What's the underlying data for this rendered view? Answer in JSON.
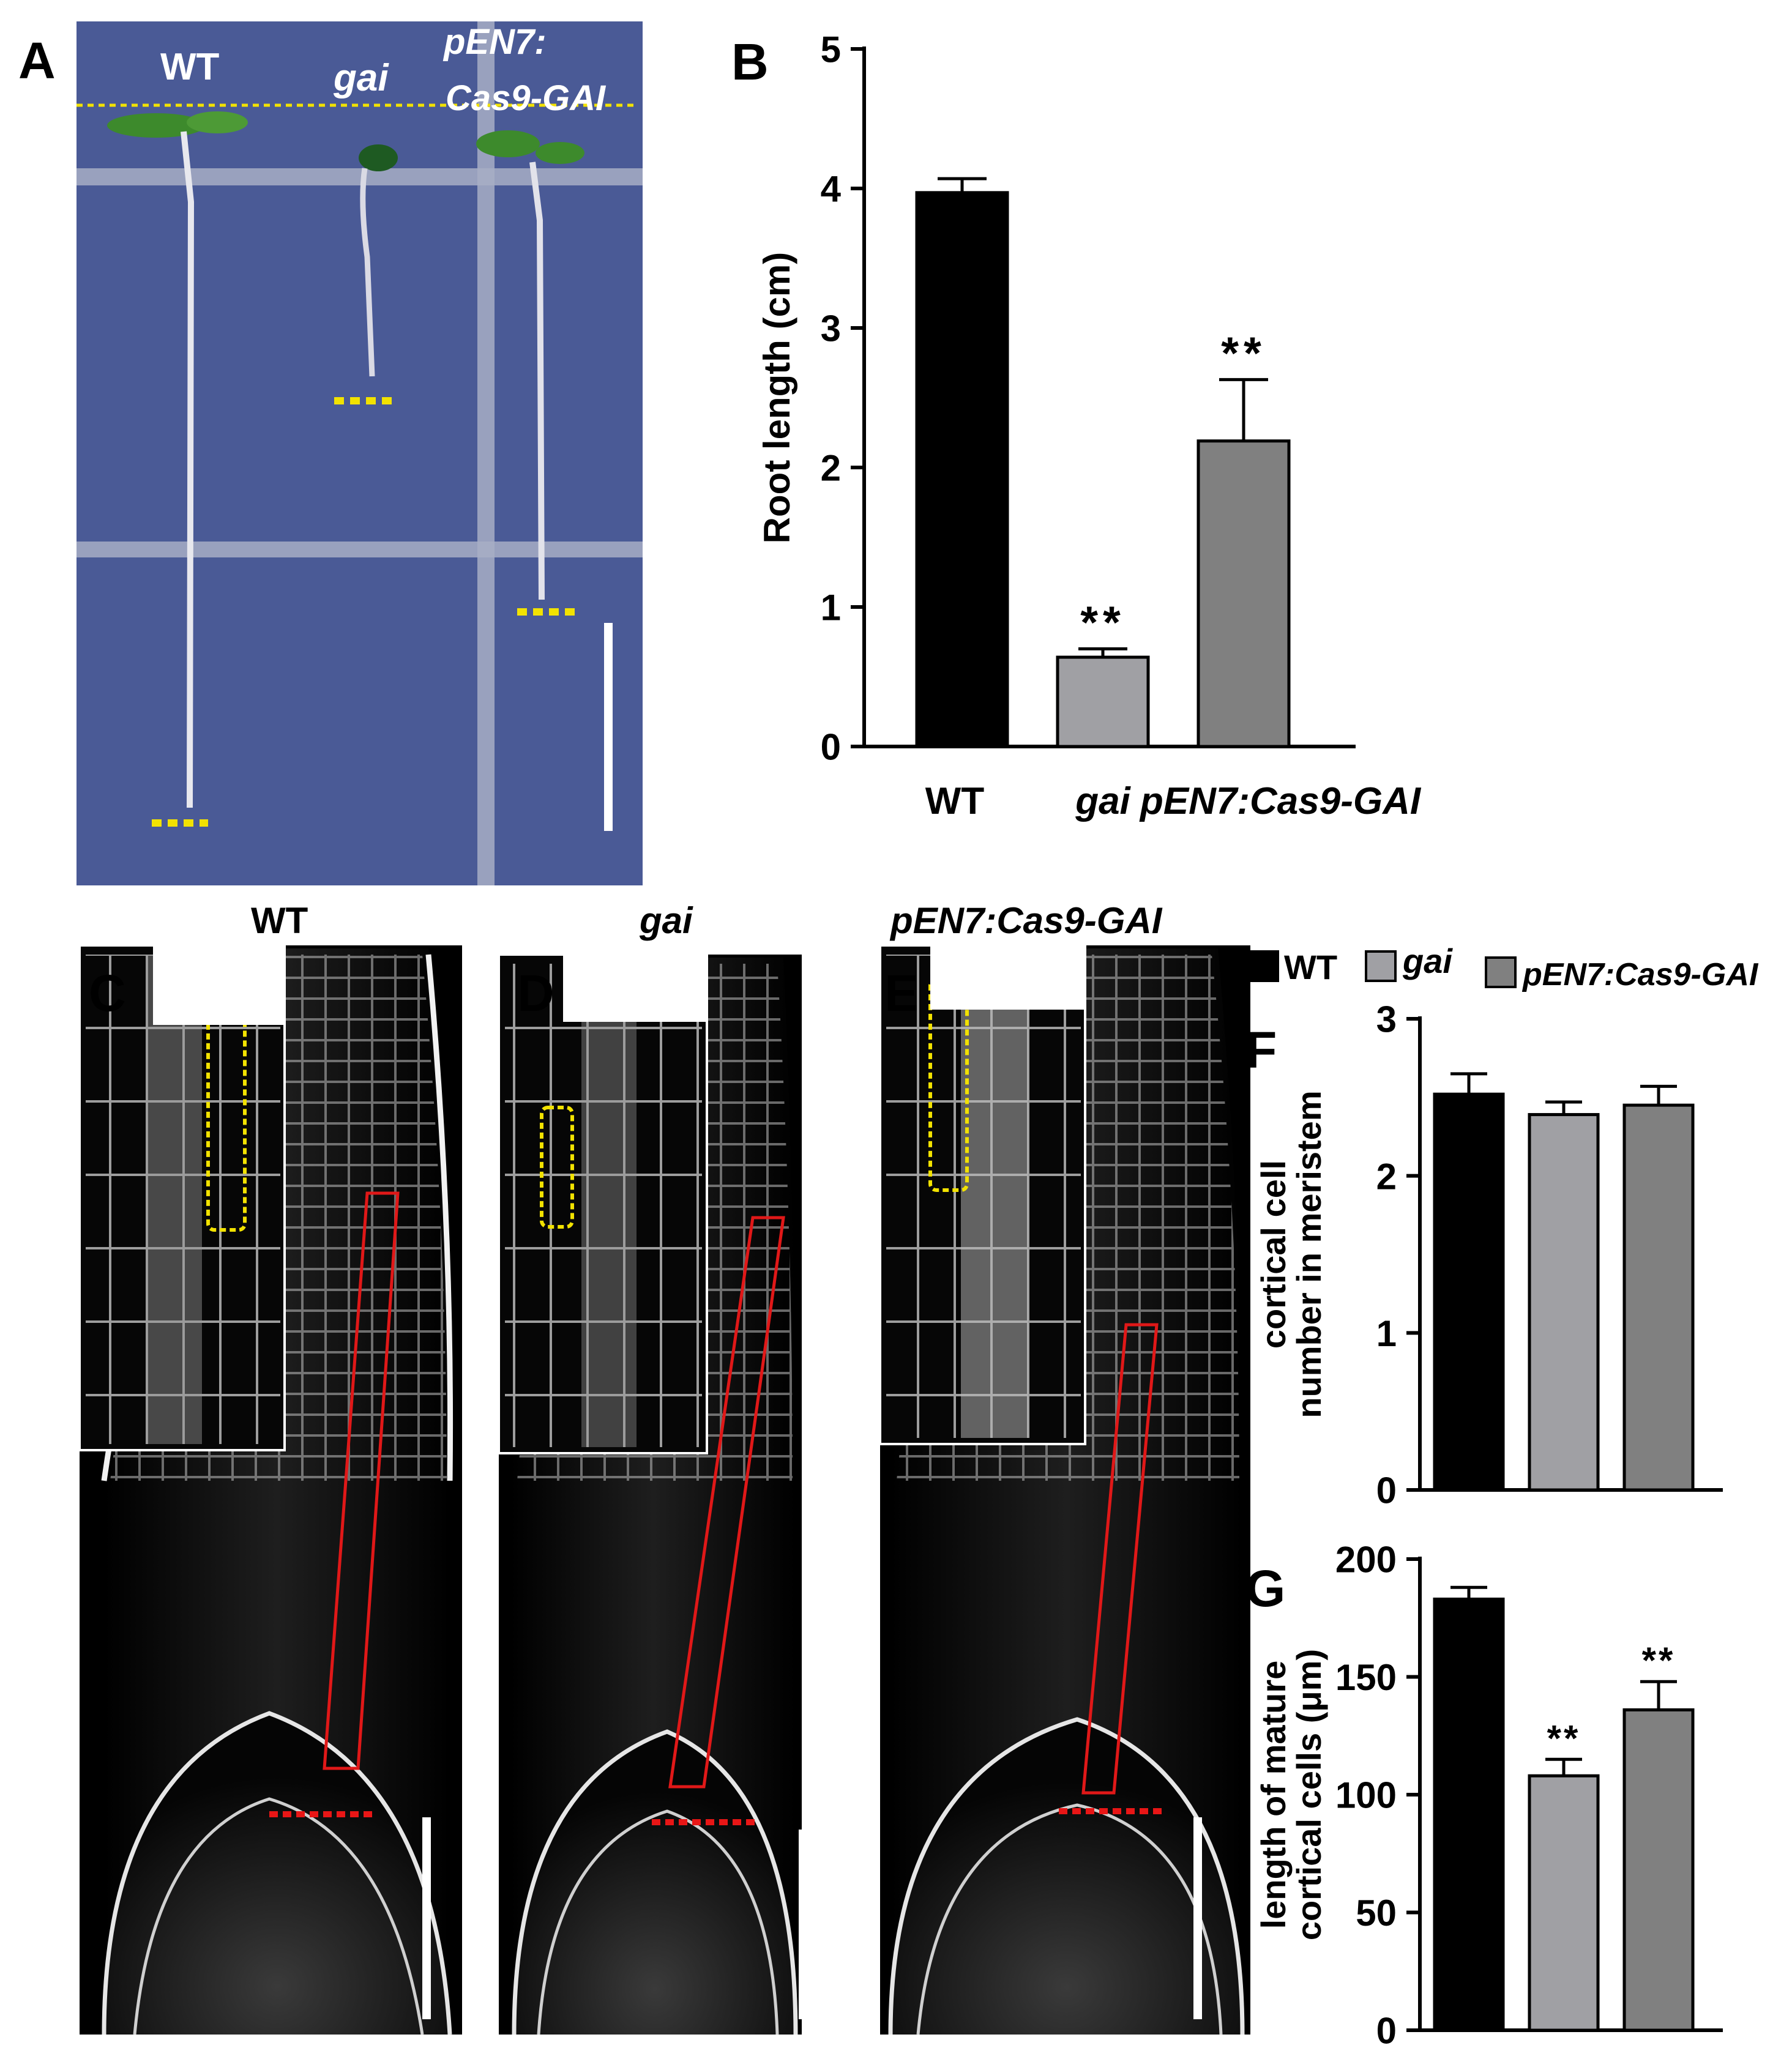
{
  "panels": {
    "A": {
      "label": "A",
      "genotypes": [
        {
          "text": "WT",
          "italic": false
        },
        {
          "text": "gai",
          "italic": true
        },
        {
          "text": "pEN7:",
          "italic": true
        },
        {
          "text": "Cas9-GAI",
          "italic": true
        }
      ],
      "background": "#4a5a96"
    },
    "B": {
      "label": "B"
    },
    "C": {
      "label": "C",
      "title": "WT"
    },
    "D": {
      "label": "D",
      "title": "gai"
    },
    "E": {
      "label": "E",
      "title": "pEN7:Cas9-GAI"
    },
    "F": {
      "label": "F"
    },
    "G": {
      "label": "G"
    }
  },
  "legend": [
    {
      "name": "WT",
      "color": "#000000",
      "italic": false
    },
    {
      "name": "gai",
      "color": "#a0a0a4",
      "italic": true
    },
    {
      "name": "pEN7:Cas9-GAI",
      "color": "#808080",
      "italic": true
    }
  ],
  "chart_data": [
    {
      "panel": "B",
      "type": "bar",
      "categories": [
        "WT",
        "gai",
        "pEN7:Cas9-GAI"
      ],
      "category_italic": [
        false,
        true,
        true
      ],
      "values": [
        3.97,
        0.64,
        2.19
      ],
      "errors": [
        0.1,
        0.06,
        0.44
      ],
      "significance": [
        "",
        "**",
        "**"
      ],
      "colors": [
        "#000000",
        "#a0a0a4",
        "#808080"
      ],
      "ylabel": "Root length (cm)",
      "ylim": [
        0,
        5
      ],
      "yticks": [
        0,
        1,
        2,
        3,
        4,
        5
      ]
    },
    {
      "panel": "F",
      "type": "bar",
      "categories": [
        "WT",
        "gai",
        "pEN7:Cas9-GAI"
      ],
      "values": [
        2.52,
        2.39,
        2.45
      ],
      "errors": [
        0.13,
        0.08,
        0.12
      ],
      "significance": [
        "",
        "",
        ""
      ],
      "colors": [
        "#000000",
        "#a0a0a4",
        "#808080"
      ],
      "ylabel": [
        "cortical cell",
        "number in meristem"
      ],
      "ylim": [
        0,
        3
      ],
      "yticks": [
        0,
        1,
        2,
        3
      ]
    },
    {
      "panel": "G",
      "type": "bar",
      "categories": [
        "WT",
        "gai",
        "pEN7:Cas9-GAI"
      ],
      "values": [
        183,
        108,
        136
      ],
      "errors": [
        5,
        7,
        12
      ],
      "significance": [
        "",
        "**",
        "**"
      ],
      "colors": [
        "#000000",
        "#a0a0a4",
        "#808080"
      ],
      "ylabel": [
        "length of mature",
        "cortical cells (μm)"
      ],
      "ylim": [
        0,
        200
      ],
      "yticks": [
        0,
        50,
        100,
        150,
        200
      ]
    }
  ]
}
